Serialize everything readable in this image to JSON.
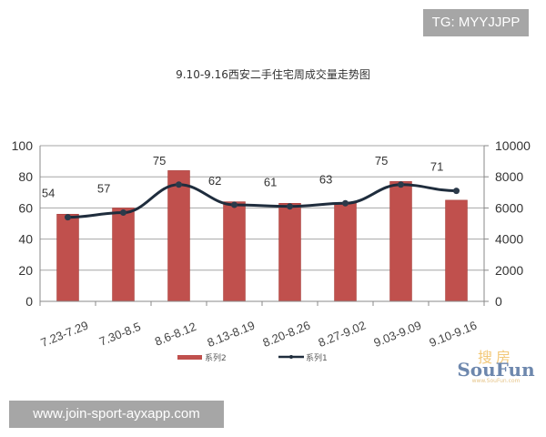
{
  "watermark_top": "TG: MYYJJPP",
  "watermark_bottom": "www.join-sport-ayxapp.com",
  "logo": {
    "cn": "搜房",
    "en": "SouFun",
    "url": "www.SouFun.com"
  },
  "chart_data": {
    "type": "bar+line",
    "title": "9.10-9.16西安二手住宅周成交量走势图",
    "categories": [
      "7.23-7.29",
      "7.30-8.5",
      "8.6-8.12",
      "8.13-8.19",
      "8.20-8.26",
      "8.27-9.02",
      "9.03-9.09",
      "9.10-9.16"
    ],
    "series": [
      {
        "name": "系列2",
        "type": "bar",
        "axis": "left",
        "color": "#c0504d",
        "values": [
          56,
          60,
          84,
          64,
          63,
          63,
          77,
          65
        ]
      },
      {
        "name": "系列1",
        "type": "line",
        "axis": "right",
        "color": "#1f2d3d",
        "values": [
          5400,
          5700,
          7500,
          6200,
          6100,
          6300,
          7500,
          7100
        ],
        "data_labels": [
          "54",
          "57",
          "75",
          "62",
          "61",
          "63",
          "75",
          "71"
        ]
      }
    ],
    "left_axis": {
      "ylim": [
        0,
        100
      ],
      "ticks": [
        "0",
        "20",
        "40",
        "60",
        "80",
        "100"
      ]
    },
    "right_axis": {
      "ylim": [
        0,
        10000
      ],
      "ticks": [
        "0",
        "2000",
        "4000",
        "6000",
        "8000",
        "10000"
      ]
    },
    "grid": true,
    "legend_position": "bottom",
    "xlabel": "",
    "ylabel": ""
  }
}
